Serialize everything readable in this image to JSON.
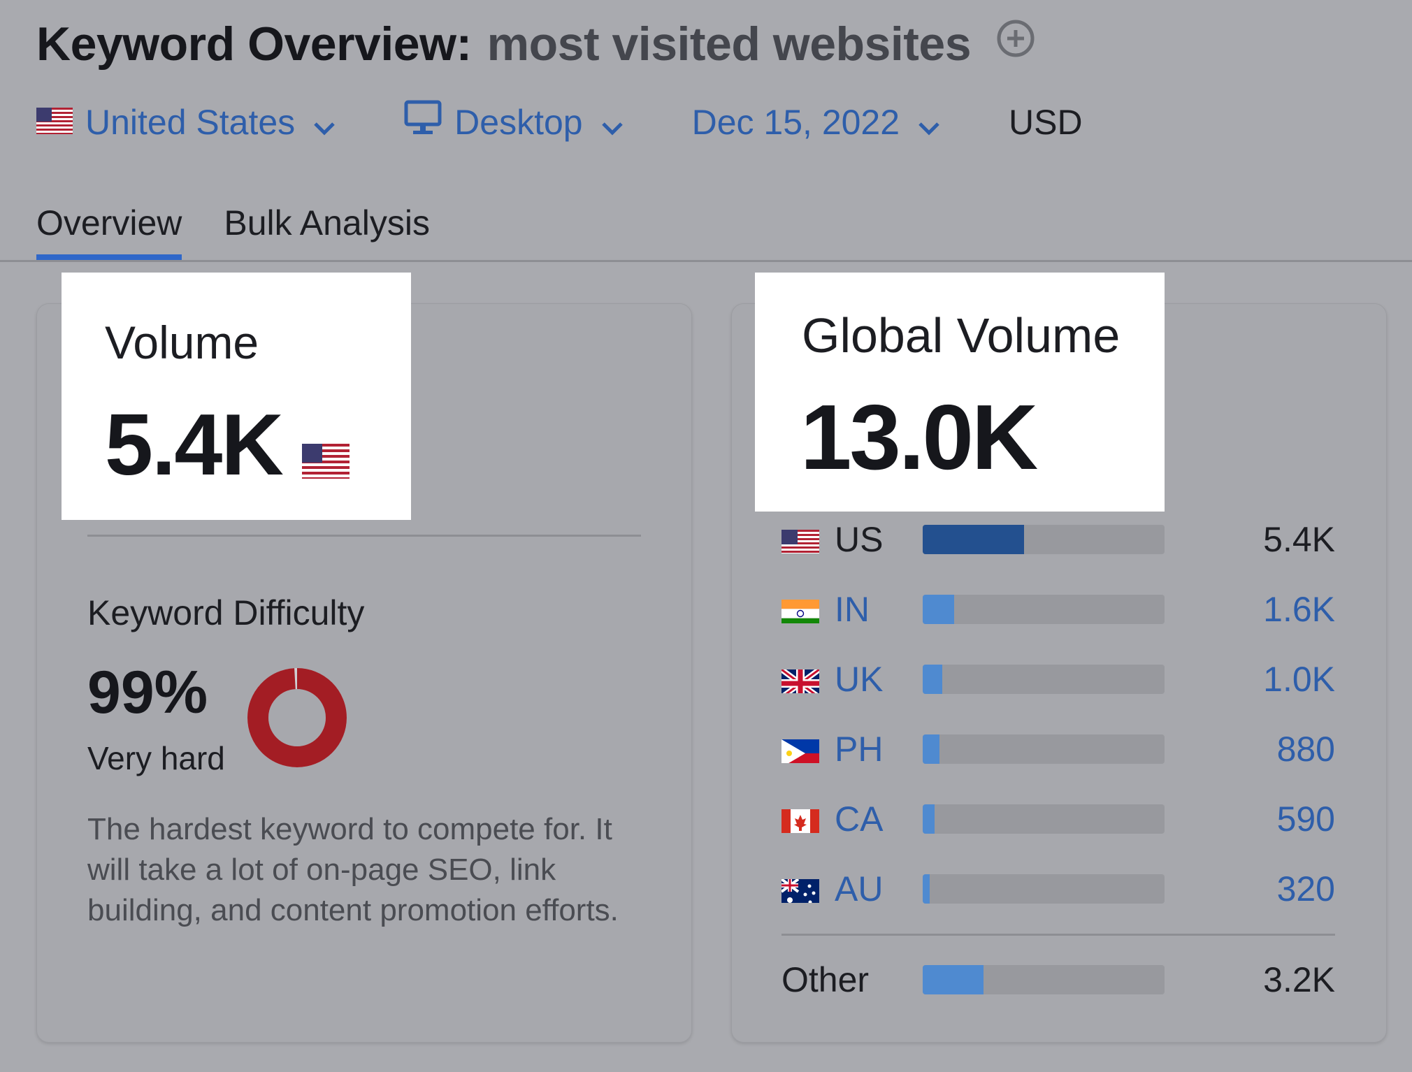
{
  "header": {
    "title_prefix": "Keyword Overview:",
    "keyword": "most visited websites",
    "add_icon": "plus-circle-icon"
  },
  "filters": {
    "country": "United States",
    "device": "Desktop",
    "date": "Dec 15, 2022",
    "currency": "USD"
  },
  "tabs": [
    {
      "label": "Overview",
      "active": true
    },
    {
      "label": "Bulk Analysis",
      "active": false
    }
  ],
  "volume": {
    "label": "Volume",
    "value": "5.4K"
  },
  "keyword_difficulty": {
    "label": "Keyword Difficulty",
    "value": "99%",
    "percent": 99,
    "rating": "Very hard",
    "ring_color": "#a31d24",
    "description": "The hardest keyword to compete for. It will take a lot of on-page SEO, link building, and content promotion efforts."
  },
  "global_volume": {
    "label": "Global Volume",
    "value": "13.0K",
    "countries": [
      {
        "code": "US",
        "value": "5.4K",
        "share": 0.42,
        "flag": "us-flag-icon"
      },
      {
        "code": "IN",
        "value": "1.6K",
        "share": 0.13,
        "flag": "india-flag-icon"
      },
      {
        "code": "UK",
        "value": "1.0K",
        "share": 0.08,
        "flag": "uk-flag-icon"
      },
      {
        "code": "PH",
        "value": "880",
        "share": 0.07,
        "flag": "philippines-flag-icon"
      },
      {
        "code": "CA",
        "value": "590",
        "share": 0.05,
        "flag": "canada-flag-icon"
      },
      {
        "code": "AU",
        "value": "320",
        "share": 0.03,
        "flag": "australia-flag-icon"
      }
    ],
    "other": {
      "label": "Other",
      "value": "3.2K",
      "share": 0.25
    }
  },
  "colors": {
    "link_blue": "#2e5eaa",
    "bar_dark": "#23508f",
    "bar_light": "#4f8ad0",
    "difficulty_red": "#a31d24"
  }
}
